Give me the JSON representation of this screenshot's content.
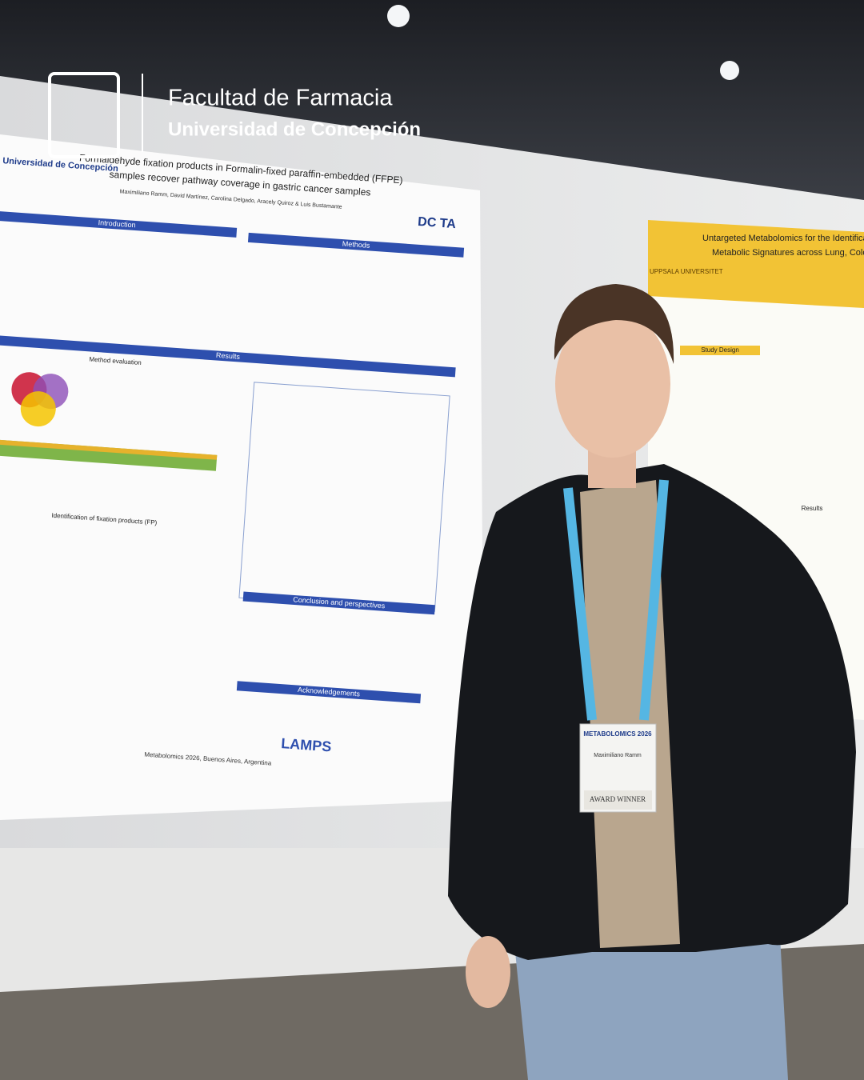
{
  "overlay": {
    "faculty": "Facultad de Farmacia",
    "university": "Universidad de Concepción"
  },
  "poster_left": {
    "logo": "Universidad de Concepción",
    "title_lines": [
      "Formaldehyde fixation products in Formalin-fixed paraffin-embedded (FFPE)",
      "samples recover pathway coverage in gastric cancer samples"
    ],
    "authors": "Maximiliano Ramm, David Martínez, Carolina Delgado, Aracely Quiroz & Luis Bustamante",
    "sections": [
      "Introduction",
      "Methods",
      "Results",
      "Method evaluation",
      "Identification of fixation products (FP)",
      "Conclusion and perspectives",
      "Acknowledgements"
    ],
    "dcta": "DC TA",
    "footer": "Metabolomics 2026, Buenos Aires, Argentina",
    "lamps": "LAMPS"
  },
  "poster_right": {
    "title_lines": [
      "Untargeted Metabolomics for the Identification of Com",
      "Metabolic Signatures across Lung, Colorectal, and O"
    ],
    "institution": "UPPSALA UNIVERSITET",
    "sections": [
      "Study Design",
      "Results"
    ]
  },
  "badge": {
    "event": "METABOLOMICS 2026",
    "name": "Maximiliano Ramm",
    "award": "AWARD WINNER"
  }
}
